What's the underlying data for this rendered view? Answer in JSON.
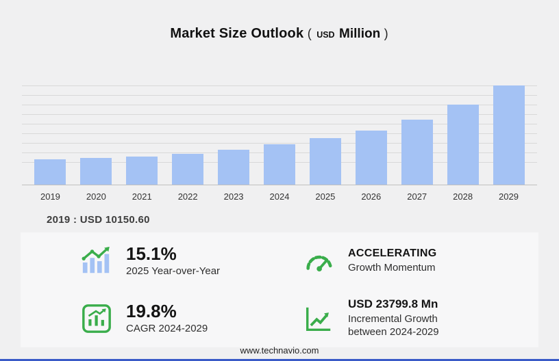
{
  "title": {
    "main": "Market Size Outlook",
    "paren_open": "(",
    "unit_small": "USD",
    "unit_big": "Million",
    "paren_close": ")"
  },
  "annotation": "2019 : USD  10150.60",
  "chart_data": {
    "type": "bar",
    "title": "Market Size Outlook (USD Million)",
    "categories": [
      "2019",
      "2020",
      "2021",
      "2022",
      "2023",
      "2024",
      "2025",
      "2026",
      "2027",
      "2028",
      "2029"
    ],
    "values": [
      10150.6,
      10650,
      11400,
      12500,
      14100,
      16216.2,
      18664.8,
      21875,
      26228,
      32287,
      40016
    ],
    "labeled_values": {
      "2019": "10150.60"
    },
    "xlabel": "",
    "ylabel": "",
    "ylim": [
      0,
      40016
    ],
    "grid": true,
    "gridline_count": 9,
    "legend": false,
    "bar_color": "#a4c2f4"
  },
  "stats": {
    "yoy": {
      "value": "15.1%",
      "label": "2025 Year-over-Year",
      "icon": "bar-growth-icon"
    },
    "momentum": {
      "value": "ACCELERATING",
      "label": "Growth Momentum",
      "icon": "gauge-icon"
    },
    "cagr": {
      "value": "19.8%",
      "label": "CAGR 2024-2029",
      "icon": "chart-box-icon"
    },
    "incremental": {
      "value": "USD 23799.8 Mn",
      "label_line1": "Incremental Growth",
      "label_line2": "between 2024-2029",
      "icon": "trend-up-icon"
    }
  },
  "footer": {
    "url": "www.technavio.com"
  },
  "colors": {
    "bar": "#a4c2f4",
    "accent_green": "#3aad4b",
    "grid": "#d8d8d8",
    "bottom_bar": "#3a5bc7",
    "background": "#f0f0f1"
  }
}
